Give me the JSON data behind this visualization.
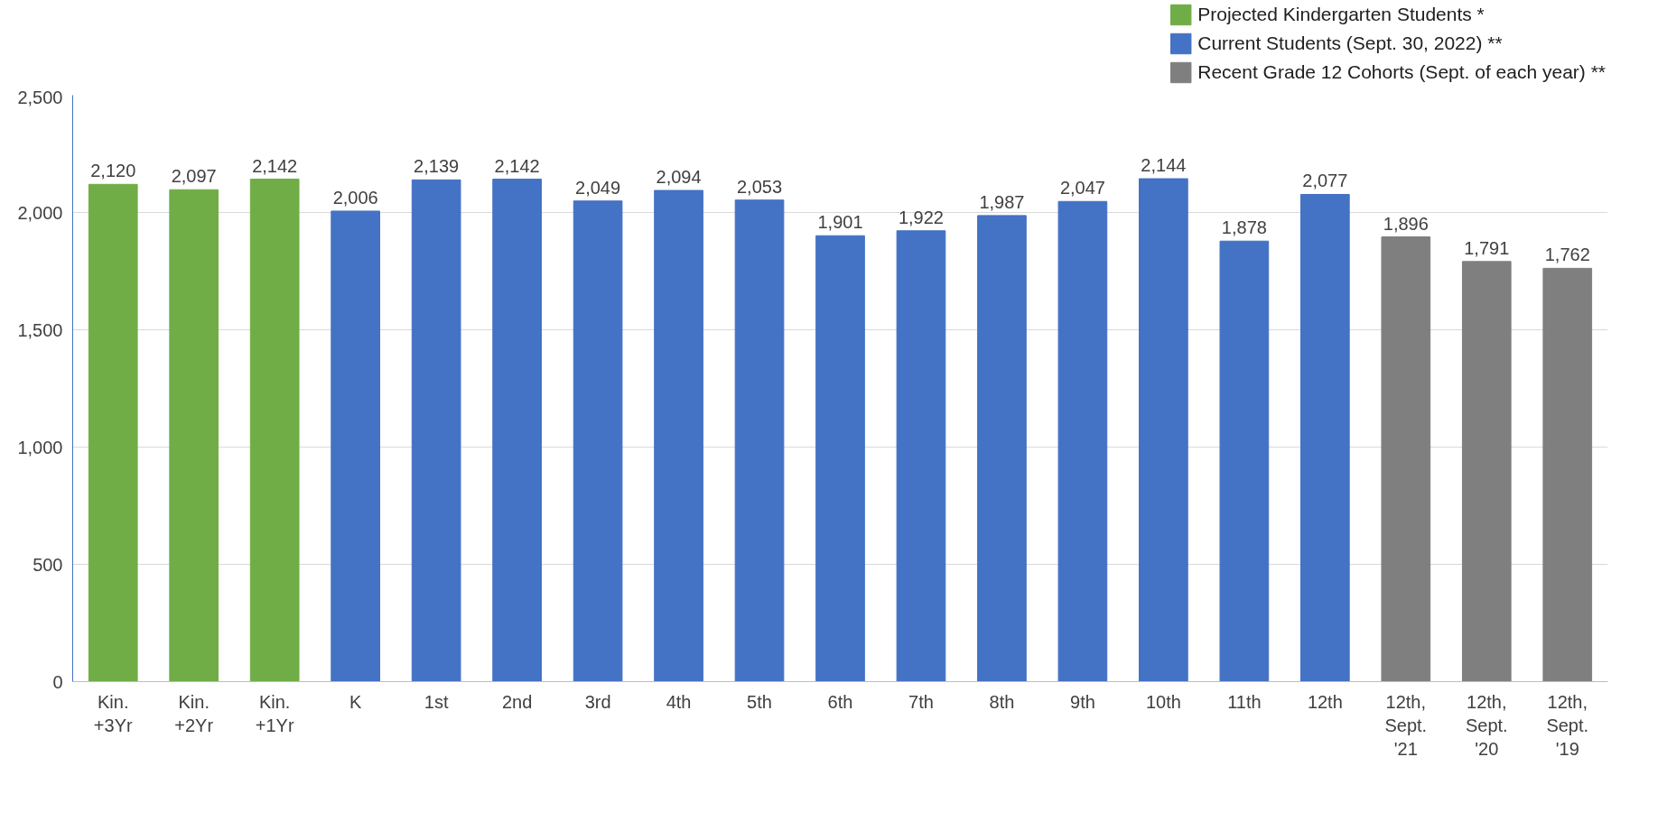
{
  "chart_data": {
    "type": "bar",
    "categories": [
      "Kin.\n+3Yr",
      "Kin.\n+2Yr",
      "Kin.\n+1Yr",
      "K",
      "1st",
      "2nd",
      "3rd",
      "4th",
      "5th",
      "6th",
      "7th",
      "8th",
      "9th",
      "10th",
      "11th",
      "12th",
      "12th,\nSept.\n'21",
      "12th,\nSept.\n'20",
      "12th,\nSept.\n'19"
    ],
    "series": [
      {
        "name": "Projected Kindergarten Students *",
        "color": "#70ad47",
        "values": [
          2120,
          2097,
          2142,
          null,
          null,
          null,
          null,
          null,
          null,
          null,
          null,
          null,
          null,
          null,
          null,
          null,
          null,
          null,
          null
        ],
        "value_labels": [
          "2,120",
          "2,097",
          "2,142",
          null,
          null,
          null,
          null,
          null,
          null,
          null,
          null,
          null,
          null,
          null,
          null,
          null,
          null,
          null,
          null
        ]
      },
      {
        "name": "Current Students (Sept. 30, 2022) **",
        "color": "#4472c4",
        "values": [
          null,
          null,
          null,
          2006,
          2139,
          2142,
          2049,
          2094,
          2053,
          1901,
          1922,
          1987,
          2047,
          2144,
          1878,
          2077,
          null,
          null,
          null
        ],
        "value_labels": [
          null,
          null,
          null,
          "2,006",
          "2,139",
          "2,142",
          "2,049",
          "2,094",
          "2,053",
          "1,901",
          "1,922",
          "1,987",
          "2,047",
          "2,144",
          "1,878",
          "2,077",
          null,
          null,
          null
        ]
      },
      {
        "name": "Recent Grade 12 Cohorts (Sept. of each year) **",
        "color": "#7f7f7f",
        "values": [
          null,
          null,
          null,
          null,
          null,
          null,
          null,
          null,
          null,
          null,
          null,
          null,
          null,
          null,
          null,
          null,
          1896,
          1791,
          1762
        ],
        "value_labels": [
          null,
          null,
          null,
          null,
          null,
          null,
          null,
          null,
          null,
          null,
          null,
          null,
          null,
          null,
          null,
          null,
          "1,896",
          "1,791",
          "1,762"
        ]
      }
    ],
    "ylim": [
      0,
      2500
    ],
    "yticks": [
      {
        "value": 0,
        "label": "0"
      },
      {
        "value": 500,
        "label": "500"
      },
      {
        "value": 1000,
        "label": "1,000"
      },
      {
        "value": 1500,
        "label": "1,500"
      },
      {
        "value": 2000,
        "label": "2,000"
      },
      {
        "value": 2500,
        "label": "2,500"
      }
    ],
    "grid": "y",
    "legend": "top right",
    "data_labels": true
  }
}
